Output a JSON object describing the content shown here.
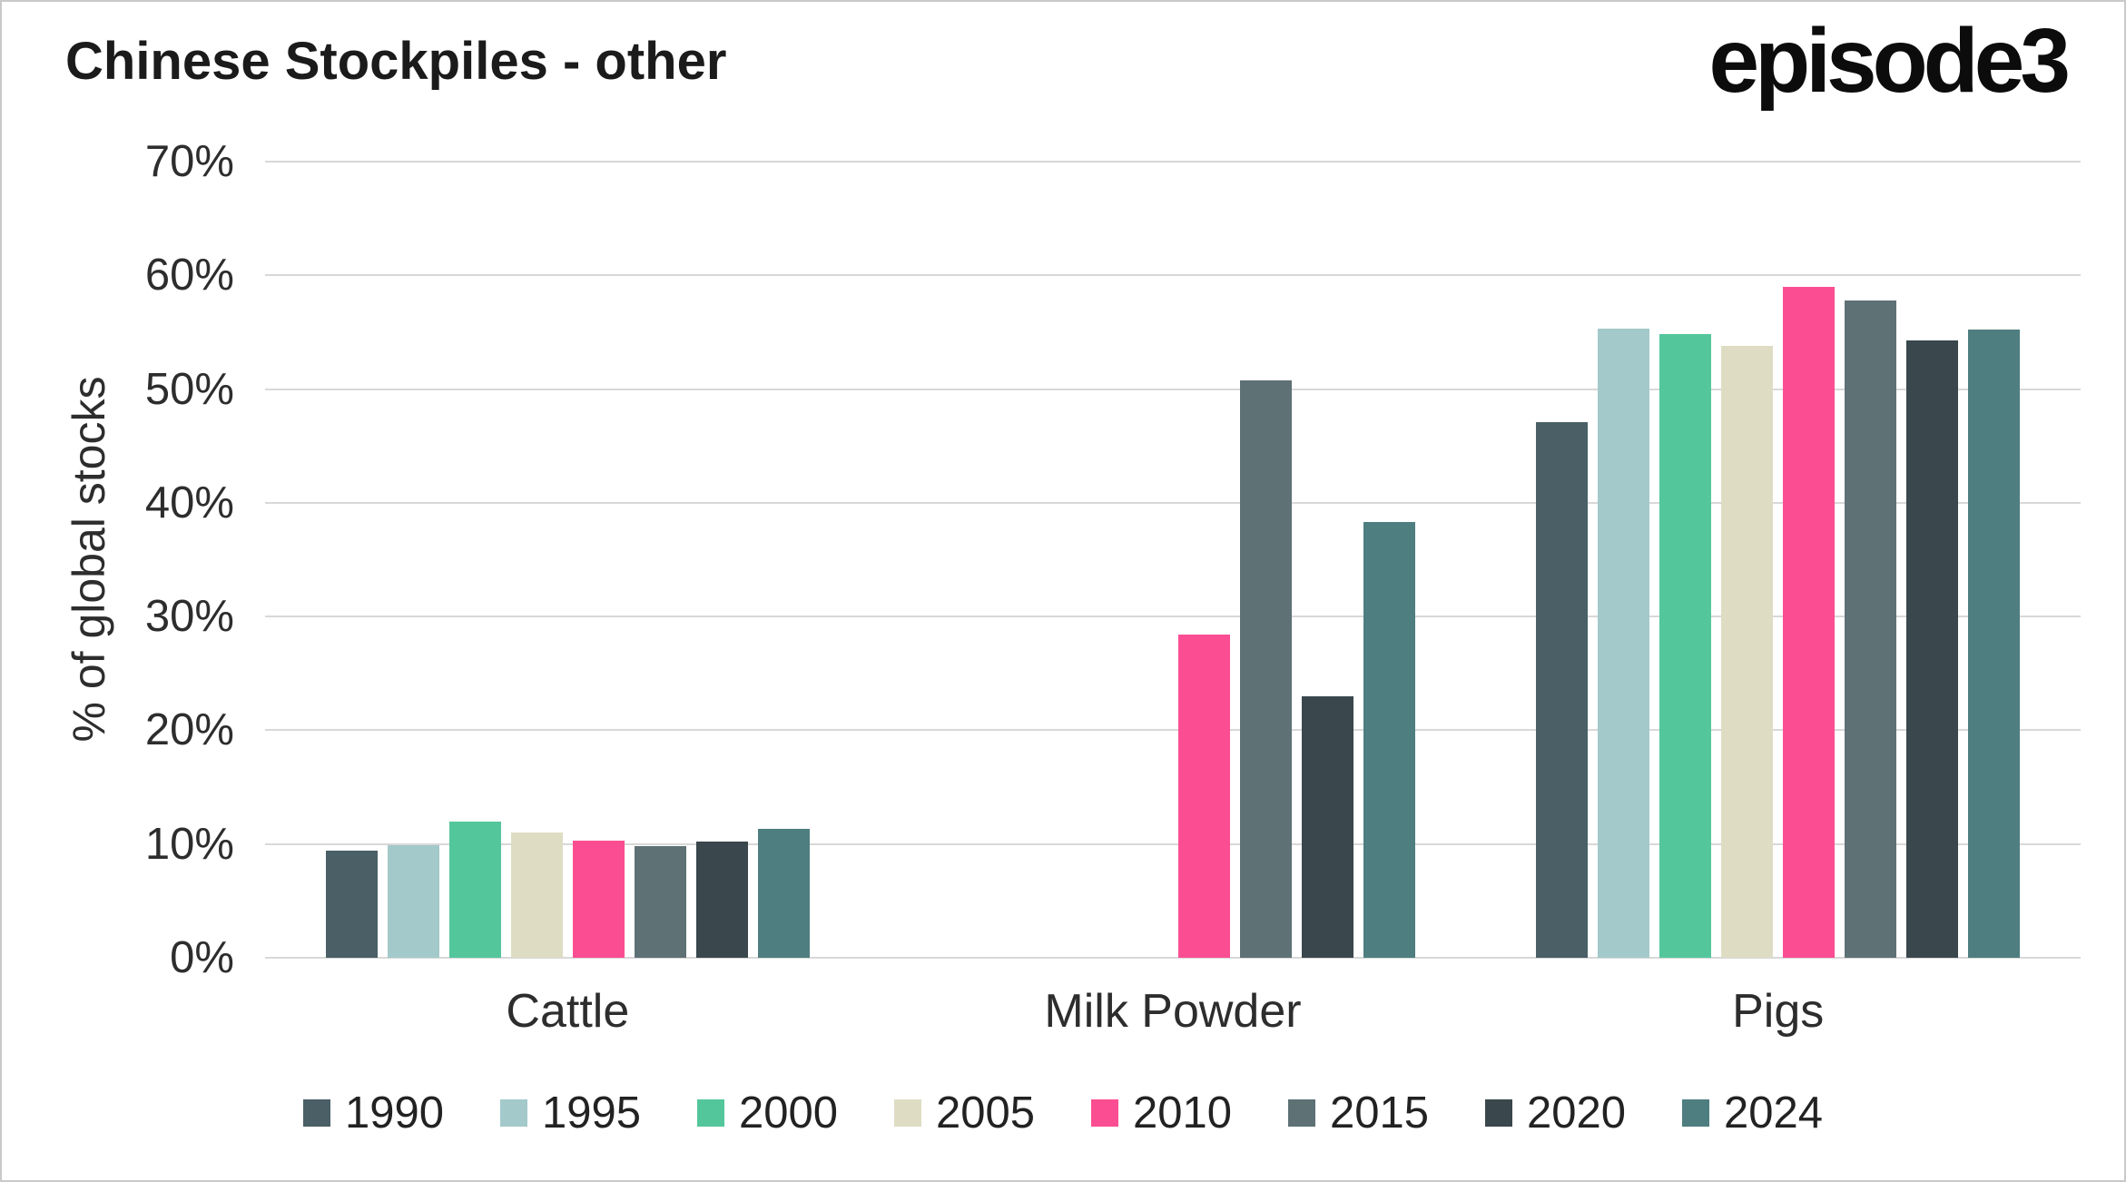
{
  "header": {
    "title": "Chinese Stockpiles - other",
    "logo": "episode3"
  },
  "chart_data": {
    "type": "bar",
    "title": "Chinese Stockpiles - other",
    "xlabel": "",
    "ylabel": "% of global stocks",
    "ylim": [
      0,
      70
    ],
    "yticks": [
      0,
      10,
      20,
      30,
      40,
      50,
      60,
      70
    ],
    "ytick_suffix": "%",
    "grid": true,
    "legend_position": "bottom",
    "categories": [
      "Cattle",
      "Milk Powder",
      "Pigs"
    ],
    "series": [
      {
        "name": "1990",
        "color": "#4a5f66",
        "values": [
          9.4,
          null,
          47.1
        ]
      },
      {
        "name": "1995",
        "color": "#a3c9cb",
        "values": [
          9.9,
          null,
          55.3
        ]
      },
      {
        "name": "2000",
        "color": "#54c69c",
        "values": [
          12.0,
          null,
          54.8
        ]
      },
      {
        "name": "2005",
        "color": "#deddc4",
        "values": [
          11.0,
          null,
          53.8
        ]
      },
      {
        "name": "2010",
        "color": "#fb4e92",
        "values": [
          10.3,
          28.4,
          59.0
        ]
      },
      {
        "name": "2015",
        "color": "#5e7175",
        "values": [
          9.8,
          50.8,
          57.8
        ]
      },
      {
        "name": "2020",
        "color": "#3a474c",
        "values": [
          10.2,
          23.0,
          54.3
        ]
      },
      {
        "name": "2024",
        "color": "#4e7e80",
        "values": [
          11.3,
          38.3,
          55.2
        ]
      }
    ]
  }
}
